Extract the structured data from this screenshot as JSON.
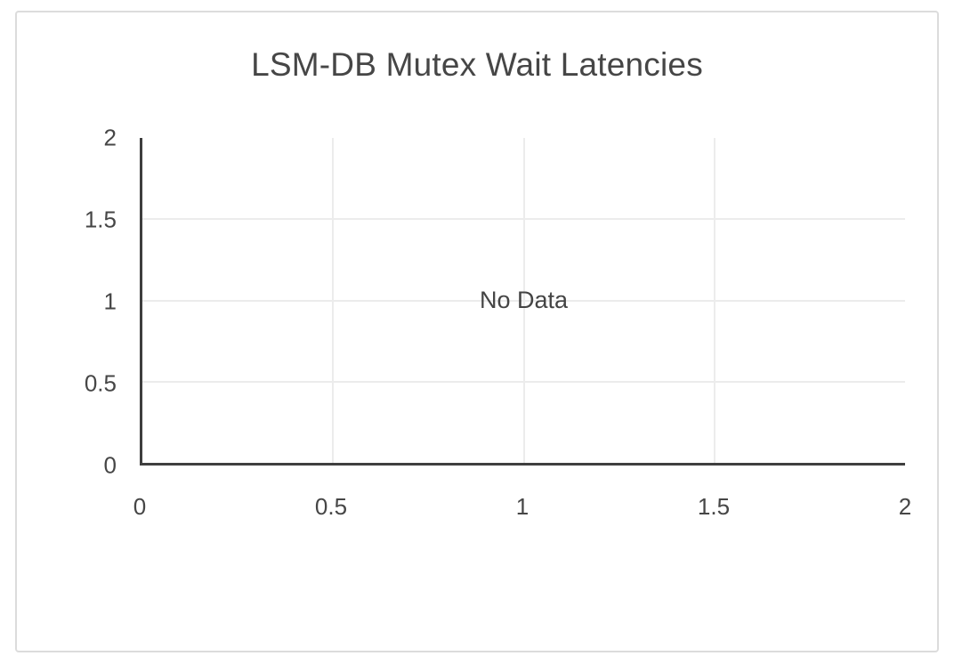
{
  "chart_data": {
    "type": "line",
    "title": "LSM-DB Mutex Wait Latencies",
    "no_data_label": "No Data",
    "series": [],
    "x": [],
    "xlabel": "",
    "ylabel": "",
    "xlim": [
      0,
      2
    ],
    "ylim": [
      0,
      2
    ],
    "x_ticks": [
      "0",
      "0.5",
      "1",
      "1.5",
      "2"
    ],
    "y_ticks": [
      "2",
      "1.5",
      "1",
      "0.5",
      "0"
    ],
    "grid": true,
    "legend": null,
    "colors": {
      "title_text": "#464646",
      "tick_text": "#464646",
      "no_data_text": "#444444",
      "axis_line": "#3f3f3f",
      "gridline": "#ececec",
      "card_border": "#dcdcdc",
      "background": "#ffffff"
    }
  }
}
